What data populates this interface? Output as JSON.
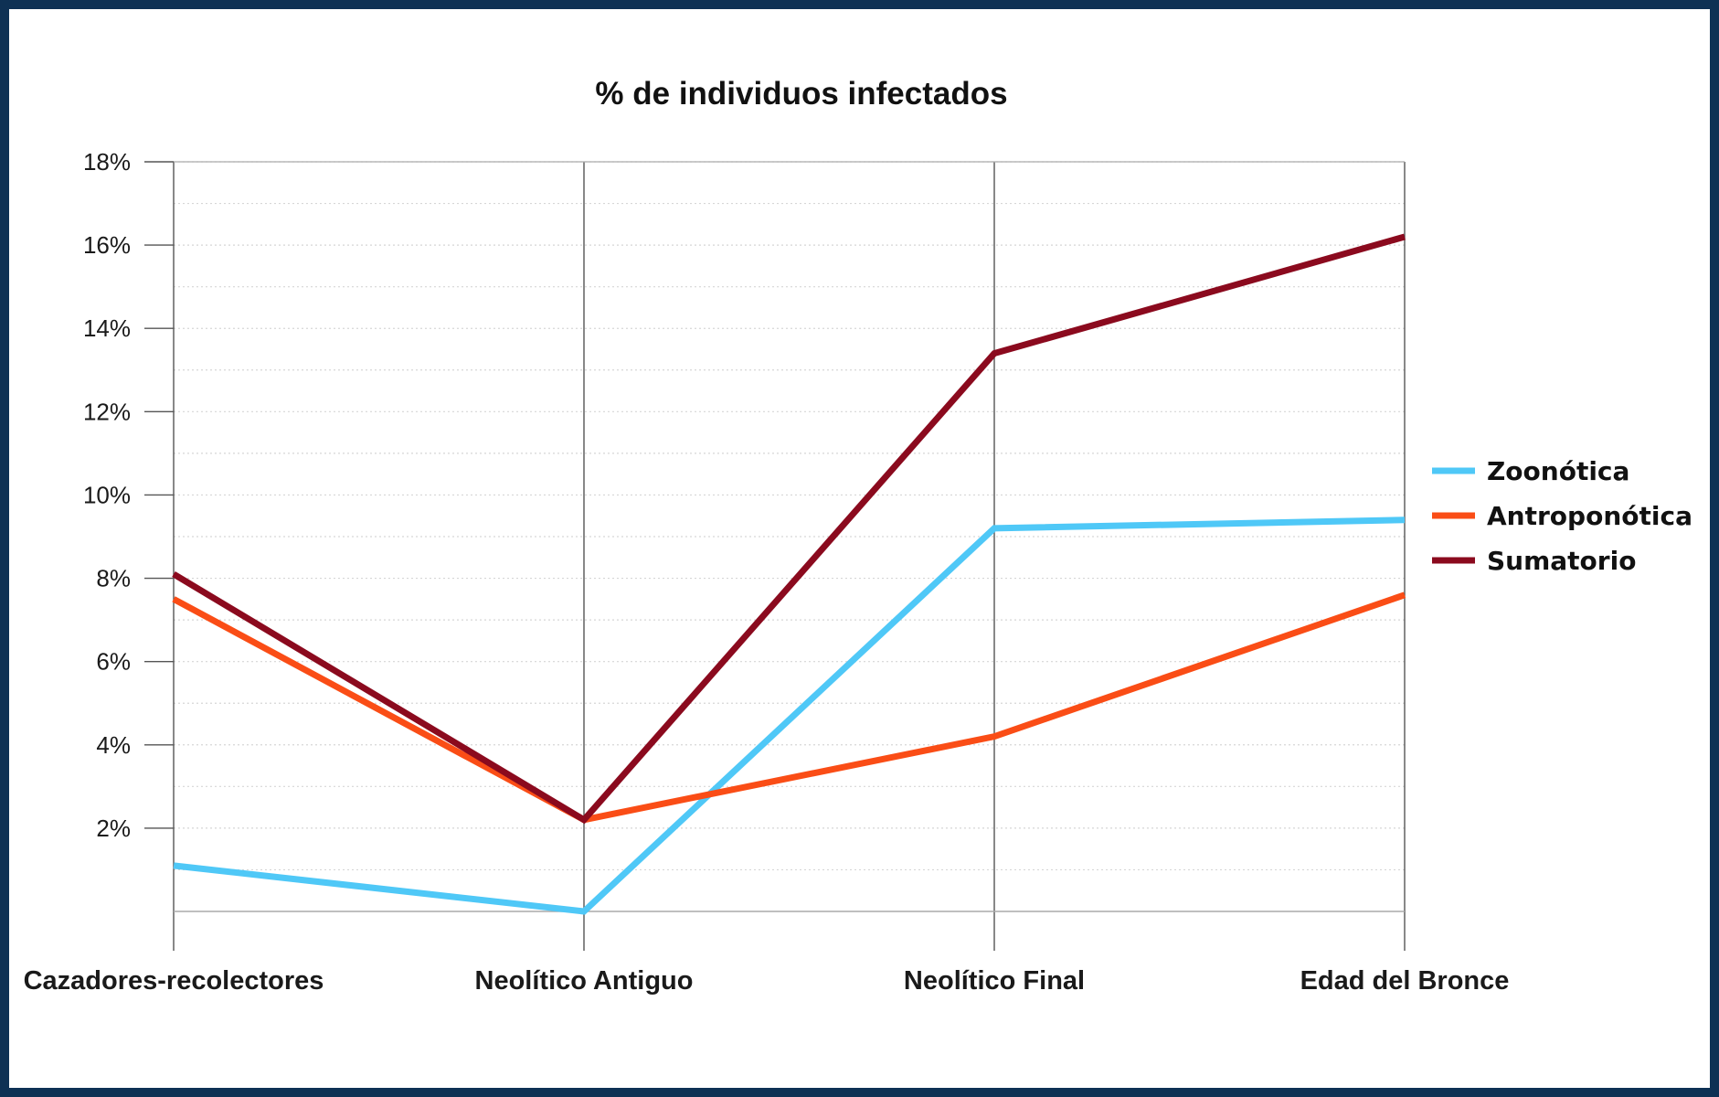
{
  "chart_data": {
    "type": "line",
    "title": "% de individuos infectados",
    "xlabel": "",
    "ylabel": "",
    "categories": [
      "Cazadores-recolectores",
      "Neolítico Antiguo",
      "Neolítico Final",
      "Edad del Bronce"
    ],
    "ylim": [
      0,
      18
    ],
    "yticks": [
      2,
      4,
      6,
      8,
      10,
      12,
      14,
      16,
      18
    ],
    "ytick_labels": [
      "2%",
      "4%",
      "6%",
      "8%",
      "10%",
      "12%",
      "14%",
      "16%",
      "18%"
    ],
    "grid": true,
    "legend_position": "right",
    "series": [
      {
        "name": "Zoonótica",
        "color": "#4fc8f7",
        "values": [
          1.1,
          0.0,
          9.2,
          9.4
        ]
      },
      {
        "name": "Antroponótica",
        "color": "#fa4d16",
        "values": [
          7.5,
          2.2,
          4.2,
          7.6
        ]
      },
      {
        "name": "Sumatorio",
        "color": "#8b0a1e",
        "values": [
          8.1,
          2.2,
          13.4,
          16.2
        ]
      }
    ]
  },
  "colors": {
    "border": "#0e3154",
    "background": "#ffffff",
    "axis": "#555555",
    "grid": "#d6d6d6"
  }
}
